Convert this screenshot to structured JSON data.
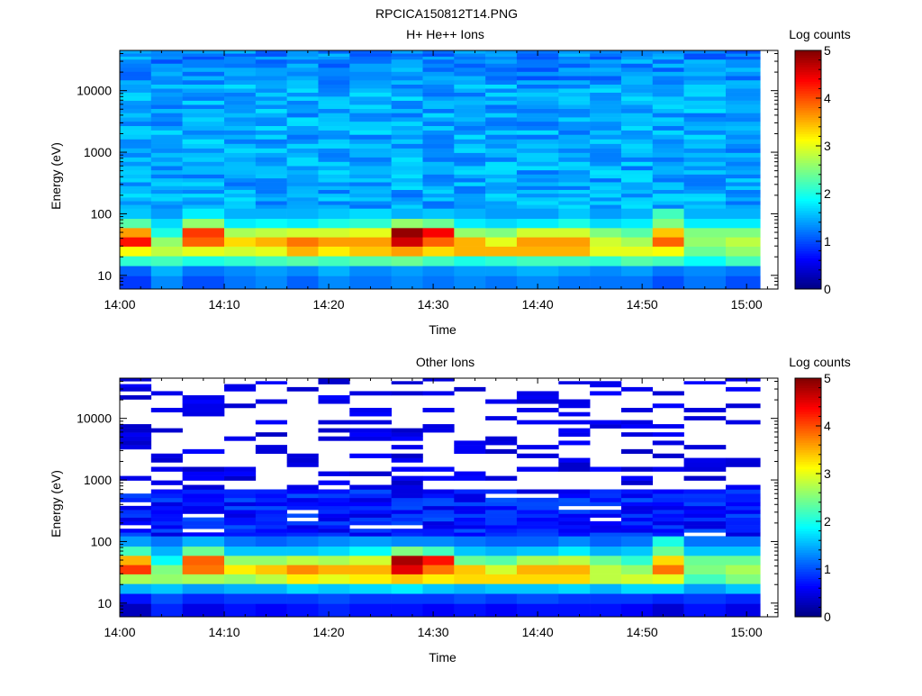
{
  "page": {
    "title": "RPCICA150812T14.PNG"
  },
  "chart_data": [
    {
      "type": "heatmap",
      "title": "H+ He++ Ions",
      "xlabel": "Time",
      "ylabel": "Energy (eV)",
      "y_scale": "log",
      "xlim": [
        "14:00",
        "15:03"
      ],
      "ylim": [
        6,
        45000
      ],
      "x_ticks": [
        "14:00",
        "14:10",
        "14:20",
        "14:30",
        "14:40",
        "14:50",
        "15:00"
      ],
      "y_ticks": [
        "10",
        "100",
        "1000",
        "10000"
      ],
      "colorbar": {
        "label": "Log counts",
        "min": 0,
        "max": 5,
        "ticks": [
          "0",
          "1",
          "2",
          "3",
          "4",
          "5"
        ]
      },
      "time_bins": [
        "14:00",
        "14:03",
        "14:06",
        "14:10",
        "14:13",
        "14:16",
        "14:19",
        "14:22",
        "14:26",
        "14:29",
        "14:32",
        "14:35",
        "14:38",
        "14:42",
        "14:45",
        "14:48",
        "14:51",
        "14:54",
        "14:58"
      ],
      "energy_bins": [
        8,
        12,
        17,
        25,
        35,
        50,
        70,
        100,
        150,
        230,
        350,
        550,
        900,
        1500,
        2500,
        4000,
        6500,
        10000,
        16000,
        26000,
        40000
      ],
      "profile_low": [
        [
          0.9,
          1.1,
          2.1,
          3.1,
          4.3,
          3.6,
          2.3,
          1.6
        ],
        [
          1.3,
          1.5,
          2.2,
          2.8,
          2.6,
          2.0,
          1.7,
          1.4
        ],
        [
          1.0,
          1.2,
          2.0,
          3.0,
          3.9,
          4.1,
          2.6,
          1.8
        ],
        [
          1.2,
          1.3,
          2.1,
          2.9,
          3.3,
          2.7,
          1.8,
          1.5
        ],
        [
          1.3,
          1.4,
          2.2,
          3.0,
          3.5,
          2.8,
          1.9,
          1.5
        ],
        [
          1.1,
          1.3,
          2.3,
          3.5,
          3.8,
          2.9,
          1.8,
          1.5
        ],
        [
          1.3,
          1.5,
          2.2,
          3.2,
          3.6,
          2.9,
          2.0,
          1.6
        ],
        [
          1.2,
          1.3,
          2.3,
          3.4,
          3.6,
          3.0,
          2.1,
          1.7
        ],
        [
          1.3,
          1.4,
          2.4,
          3.6,
          4.6,
          4.9,
          2.6,
          1.5
        ],
        [
          1.2,
          1.3,
          2.2,
          3.3,
          3.9,
          4.4,
          2.4,
          1.6
        ],
        [
          1.3,
          1.4,
          2.0,
          3.5,
          3.5,
          2.6,
          1.8,
          1.5
        ],
        [
          1.2,
          1.4,
          2.1,
          3.5,
          3.0,
          2.5,
          1.7,
          1.4
        ],
        [
          1.3,
          1.5,
          2.2,
          3.5,
          3.6,
          2.9,
          1.8,
          1.4
        ],
        [
          1.2,
          1.4,
          2.2,
          3.5,
          3.6,
          2.9,
          2.0,
          1.6
        ],
        [
          1.2,
          1.3,
          2.1,
          3.0,
          2.9,
          2.5,
          1.7,
          1.4
        ],
        [
          1.2,
          1.4,
          2.3,
          3.0,
          2.7,
          2.3,
          1.8,
          1.5
        ],
        [
          1.0,
          1.2,
          2.2,
          3.1,
          3.9,
          3.4,
          2.5,
          2.2
        ],
        [
          1.2,
          1.3,
          1.9,
          2.4,
          2.6,
          2.5,
          1.8,
          1.5
        ],
        [
          1.0,
          1.2,
          2.2,
          2.6,
          2.8,
          2.5,
          1.8,
          1.5
        ]
      ]
    },
    {
      "type": "heatmap",
      "title": "Other Ions",
      "xlabel": "Time",
      "ylabel": "Energy (eV)",
      "y_scale": "log",
      "xlim": [
        "14:00",
        "15:03"
      ],
      "ylim": [
        6,
        45000
      ],
      "x_ticks": [
        "14:00",
        "14:10",
        "14:20",
        "14:30",
        "14:40",
        "14:50",
        "15:00"
      ],
      "y_ticks": [
        "10",
        "100",
        "1000",
        "10000"
      ],
      "colorbar": {
        "label": "Log counts",
        "min": 0,
        "max": 5,
        "ticks": [
          "0",
          "1",
          "2",
          "3",
          "4",
          "5"
        ]
      },
      "time_bins": [
        "14:00",
        "14:03",
        "14:06",
        "14:10",
        "14:13",
        "14:16",
        "14:19",
        "14:22",
        "14:26",
        "14:29",
        "14:32",
        "14:35",
        "14:38",
        "14:42",
        "14:45",
        "14:48",
        "14:51",
        "14:54",
        "14:58"
      ],
      "energy_bins": [
        8,
        12,
        17,
        25,
        35,
        50,
        70,
        100,
        150,
        230,
        350,
        550,
        900,
        1500,
        2500,
        4000,
        6500,
        10000,
        16000,
        26000,
        40000
      ],
      "profile_low": [
        [
          0.3,
          0.7,
          1.5,
          2.7,
          4.1,
          3.5,
          2.2,
          1.4
        ],
        [
          0.8,
          1.0,
          1.6,
          2.6,
          2.5,
          1.9,
          1.5,
          1.2
        ],
        [
          0.5,
          0.8,
          1.4,
          2.7,
          3.8,
          3.9,
          2.4,
          1.5
        ],
        [
          0.7,
          0.9,
          1.5,
          2.6,
          3.2,
          2.6,
          1.6,
          1.2
        ],
        [
          0.6,
          0.9,
          1.5,
          2.8,
          3.4,
          2.6,
          1.6,
          1.1
        ],
        [
          0.7,
          0.9,
          1.7,
          3.2,
          3.7,
          2.8,
          1.6,
          1.2
        ],
        [
          0.8,
          1.0,
          1.6,
          3.0,
          3.5,
          2.7,
          1.7,
          1.3
        ],
        [
          0.7,
          0.9,
          1.7,
          3.2,
          3.5,
          2.9,
          1.9,
          1.4
        ],
        [
          0.7,
          0.9,
          1.8,
          3.4,
          4.5,
          4.8,
          2.5,
          1.3
        ],
        [
          0.6,
          0.9,
          1.6,
          3.2,
          3.8,
          4.3,
          2.2,
          1.3
        ],
        [
          0.7,
          1.0,
          1.5,
          3.3,
          3.4,
          2.4,
          1.6,
          1.2
        ],
        [
          0.6,
          0.9,
          1.6,
          3.3,
          2.9,
          2.3,
          1.5,
          1.1
        ],
        [
          0.7,
          1.0,
          1.6,
          3.3,
          3.5,
          2.7,
          1.6,
          1.1
        ],
        [
          0.7,
          0.9,
          1.7,
          3.3,
          3.5,
          2.8,
          1.8,
          1.3
        ],
        [
          0.7,
          0.9,
          1.5,
          2.8,
          2.8,
          2.4,
          1.5,
          1.1
        ],
        [
          0.6,
          0.9,
          1.7,
          2.9,
          2.6,
          2.1,
          1.6,
          1.2
        ],
        [
          0.4,
          0.8,
          1.7,
          3.0,
          3.8,
          3.3,
          2.4,
          2.0
        ],
        [
          0.7,
          0.9,
          1.4,
          2.2,
          2.5,
          2.4,
          1.6,
          1.2
        ],
        [
          0.5,
          0.8,
          1.6,
          2.5,
          2.7,
          2.4,
          1.6,
          1.2
        ]
      ]
    }
  ]
}
